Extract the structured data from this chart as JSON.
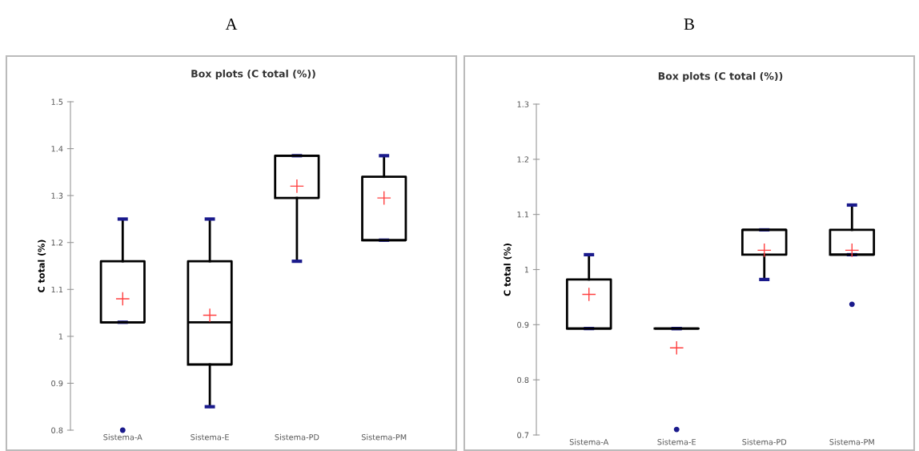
{
  "chart_data": [
    {
      "type": "box",
      "title": "Box plots (C total (%))",
      "ylabel": "C total (%)",
      "annotations": [
        "A"
      ],
      "categories": [
        "Sistema-A",
        "Sistema-E",
        "Sistema-PD",
        "Sistema-PM"
      ],
      "boxes": [
        {
          "low": 1.03,
          "q1": 1.03,
          "median": 1.03,
          "q3": 1.16,
          "high": 1.25,
          "mean": 1.08,
          "outliers": [
            0.8
          ]
        },
        {
          "low": 0.85,
          "q1": 0.94,
          "median": 1.03,
          "q3": 1.16,
          "high": 1.25,
          "mean": 1.045
        },
        {
          "low": 1.16,
          "q1": 1.295,
          "median": 1.385,
          "q3": 1.385,
          "high": 1.385,
          "mean": 1.32
        },
        {
          "low": 1.205,
          "q1": 1.205,
          "median": 1.205,
          "q3": 1.34,
          "high": 1.385,
          "mean": 1.295
        }
      ],
      "ylim": [
        0.8,
        1.5
      ],
      "yticks": [
        0.8,
        0.9,
        1,
        1.1,
        1.2,
        1.3,
        1.4,
        1.5
      ],
      "grid": false
    },
    {
      "type": "box",
      "title": "Box plots (C total (%))",
      "ylabel": "C total (%)",
      "annotations": [
        "B"
      ],
      "categories": [
        "Sistema-A",
        "Sistema-E",
        "Sistema-PD",
        "Sistema-PM"
      ],
      "boxes": [
        {
          "low": 0.893,
          "q1": 0.893,
          "median": 0.893,
          "q3": 0.982,
          "high": 1.027,
          "mean": 0.955
        },
        {
          "low": 0.893,
          "q1": 0.893,
          "median": 0.893,
          "q3": 0.893,
          "high": 0.893,
          "mean": 0.858,
          "outliers": [
            0.71
          ]
        },
        {
          "low": 0.982,
          "q1": 1.027,
          "median": 1.072,
          "q3": 1.072,
          "high": 1.072,
          "mean": 1.035
        },
        {
          "low": 1.027,
          "q1": 1.027,
          "median": 1.027,
          "q3": 1.072,
          "high": 1.117,
          "mean": 1.035,
          "outliers": [
            0.937
          ]
        }
      ],
      "ylim": [
        0.7,
        1.3
      ],
      "yticks": [
        0.7,
        0.8,
        0.9,
        1,
        1.1,
        1.2,
        1.3
      ],
      "grid": false
    }
  ]
}
